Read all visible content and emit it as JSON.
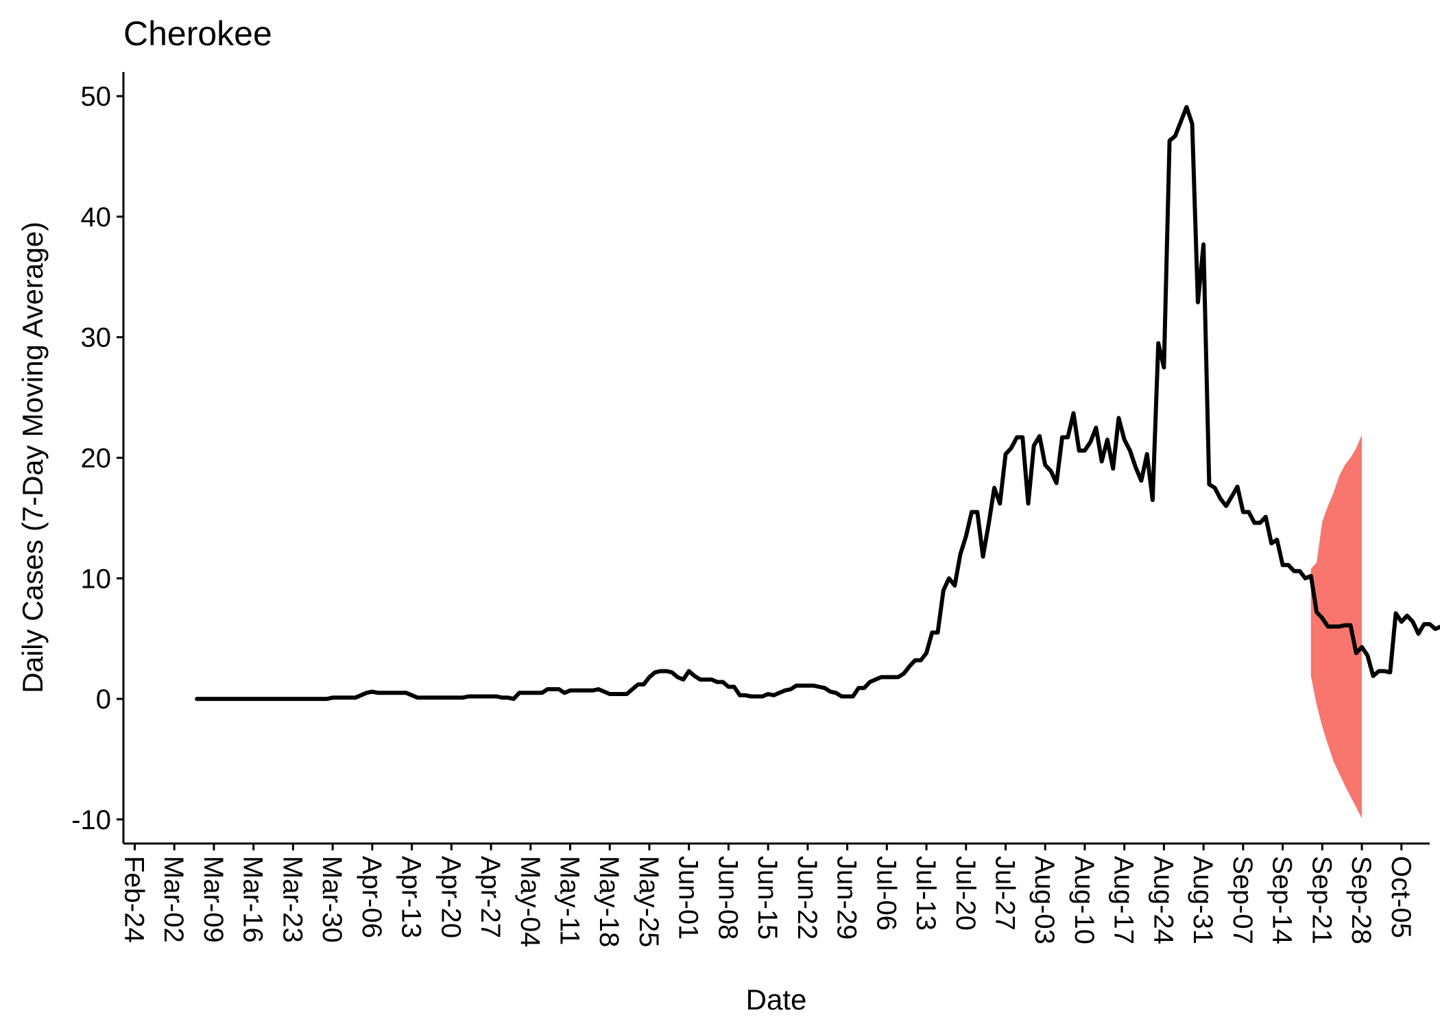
{
  "chart_data": {
    "type": "line",
    "title": "Cherokee",
    "xlabel": "Date",
    "ylabel": "Daily Cases (7-Day Moving Average)",
    "ylim": [
      -12,
      52
    ],
    "y_ticks": [
      -10,
      0,
      10,
      20,
      30,
      40,
      50
    ],
    "x_ticks": [
      "Feb-24",
      "Mar-02",
      "Mar-09",
      "Mar-16",
      "Mar-23",
      "Mar-30",
      "Apr-06",
      "Apr-13",
      "Apr-20",
      "Apr-27",
      "May-04",
      "May-11",
      "May-18",
      "May-25",
      "Jun-01",
      "Jun-08",
      "Jun-15",
      "Jun-22",
      "Jun-29",
      "Jul-06",
      "Jul-13",
      "Jul-20",
      "Jul-27",
      "Aug-03",
      "Aug-10",
      "Aug-17",
      "Aug-24",
      "Aug-31",
      "Sep-07",
      "Sep-14",
      "Sep-21",
      "Sep-28",
      "Oct-05"
    ],
    "x_range": [
      "2020-02-22",
      "2020-10-10"
    ],
    "grid": false,
    "legend": "none",
    "colors": {
      "line": "#000000",
      "band": "#F8766D"
    },
    "series": [
      {
        "x_start": "2020-03-06",
        "values": [
          0,
          0,
          0,
          0,
          0,
          0,
          0,
          0,
          0,
          0,
          0,
          0,
          0,
          0,
          0,
          0,
          0,
          0,
          0,
          0,
          0,
          0,
          0,
          0,
          0.1,
          0.1,
          0.1,
          0.1,
          0.1,
          0.3,
          0.5,
          0.6,
          0.5,
          0.5,
          0.5,
          0.5,
          0.5,
          0.5,
          0.3,
          0.1,
          0.1,
          0.1,
          0.1,
          0.1,
          0.1,
          0.1,
          0.1,
          0.1,
          0.2,
          0.2,
          0.2,
          0.2,
          0.2,
          0.2,
          0.1,
          0.1,
          0,
          0.5,
          0.5,
          0.5,
          0.5,
          0.5,
          0.8,
          0.8,
          0.8,
          0.5,
          0.7,
          0.7,
          0.7,
          0.7,
          0.7,
          0.8,
          0.6,
          0.4,
          0.4,
          0.4,
          0.4,
          0.8,
          1.2,
          1.2,
          1.8,
          2.2,
          2.3,
          2.3,
          2.2,
          1.8,
          1.6,
          2.3,
          1.9,
          1.6,
          1.6,
          1.6,
          1.4,
          1.4,
          1,
          1,
          0.3,
          0.3,
          0.2,
          0.2,
          0.2,
          0.4,
          0.3,
          0.5,
          0.7,
          0.8,
          1.1,
          1.1,
          1.1,
          1.1,
          1.0,
          0.9,
          0.6,
          0.5,
          0.2,
          0.2,
          0.2,
          0.9,
          0.9,
          1.4,
          1.6,
          1.8,
          1.8,
          1.8,
          1.8,
          2.1,
          2.7,
          3.2,
          3.2,
          3.8,
          5.5,
          5.5,
          9,
          10,
          9.4,
          12,
          13.5,
          15.5,
          15.5,
          11.8,
          14.5,
          17.5,
          16.2,
          20.3,
          20.8,
          21.7,
          21.7,
          16.2,
          21,
          21.8,
          19.4,
          18.9,
          17.9,
          21.7,
          21.7,
          23.7,
          20.6,
          20.6,
          21.3,
          22.5,
          19.7,
          21.5,
          19.1,
          23.3,
          21.5,
          20.6,
          19.2,
          18.1,
          20.3,
          16.5,
          29.5,
          27.5,
          46.3,
          46.7,
          47.9,
          49.1,
          47.7,
          32.9,
          37.7,
          17.8,
          17.5,
          16.6,
          16,
          16.8,
          17.6,
          15.5,
          15.5,
          14.6,
          14.6,
          15.1,
          12.9,
          13.2,
          11.1,
          11.1,
          10.6,
          10.6,
          10,
          10.2,
          7.2,
          6.7,
          6,
          6,
          6,
          6.1,
          6.1,
          3.8,
          4.3,
          3.6,
          1.9,
          2.3,
          2.3,
          2.2,
          7.1,
          6.4,
          6.9,
          6.4,
          5.4,
          6.2,
          6.2,
          5.8,
          6.0,
          6.0,
          6.0,
          6.0,
          6.0
        ]
      }
    ],
    "forecast_band": {
      "x_start": "2020-09-19",
      "lower": [
        1.9,
        -0.5,
        -2.3,
        -3.8,
        -5.2,
        -6.2,
        -7.2,
        -8.1,
        -9,
        -9.9
      ],
      "upper": [
        10.8,
        11.3,
        14.7,
        16,
        17.1,
        18.5,
        19.4,
        20,
        20.8,
        21.9
      ]
    }
  }
}
